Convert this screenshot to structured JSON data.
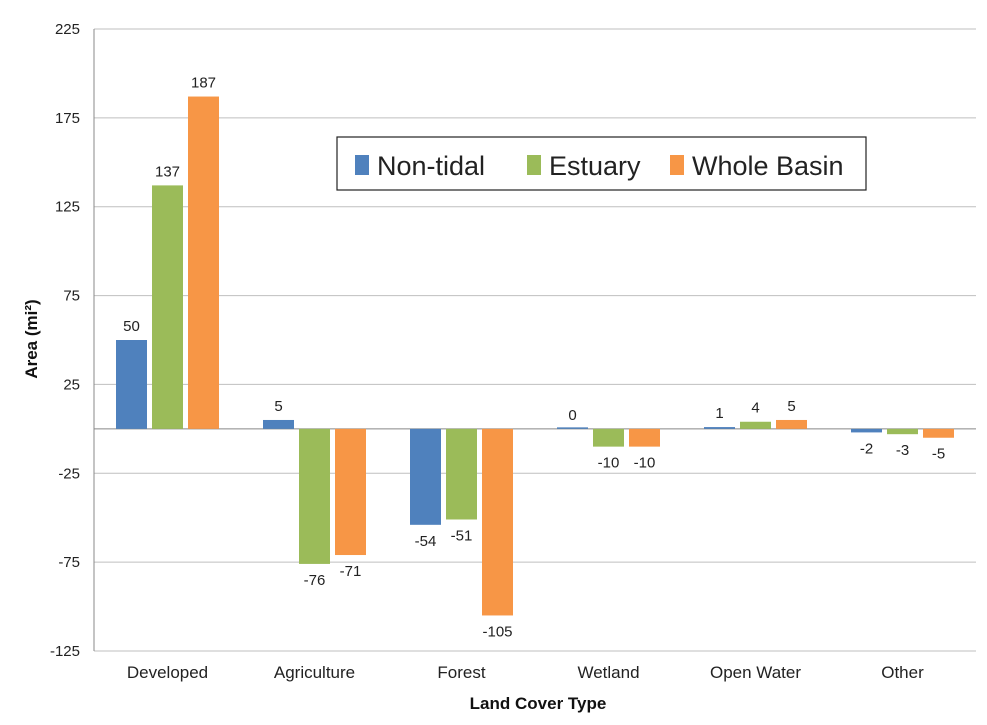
{
  "chart_data": {
    "type": "bar",
    "title": "",
    "xlabel": "Land Cover Type",
    "ylabel": "Area (mi²)",
    "ylim": [
      -125,
      225
    ],
    "yticks": [
      "225",
      "175",
      "125",
      "75",
      "25",
      "-25",
      "-75",
      "-125"
    ],
    "yticks_values": [
      225,
      175,
      125,
      75,
      25,
      -25,
      -75,
      -125
    ],
    "grid": true,
    "legend_position": "top-center",
    "categories": [
      "Developed",
      "Agriculture",
      "Forest",
      "Wetland",
      "Open Water",
      "Other"
    ],
    "series": [
      {
        "name": "Non-tidal",
        "color": "#4F81BD",
        "values": [
          50,
          5,
          -54,
          0,
          1,
          -2
        ]
      },
      {
        "name": "Estuary",
        "color": "#9BBB59",
        "values": [
          137,
          -76,
          -51,
          -10,
          4,
          -3
        ]
      },
      {
        "name": "Whole Basin",
        "color": "#F79646",
        "values": [
          187,
          -71,
          -105,
          -10,
          5,
          -5
        ]
      }
    ]
  }
}
